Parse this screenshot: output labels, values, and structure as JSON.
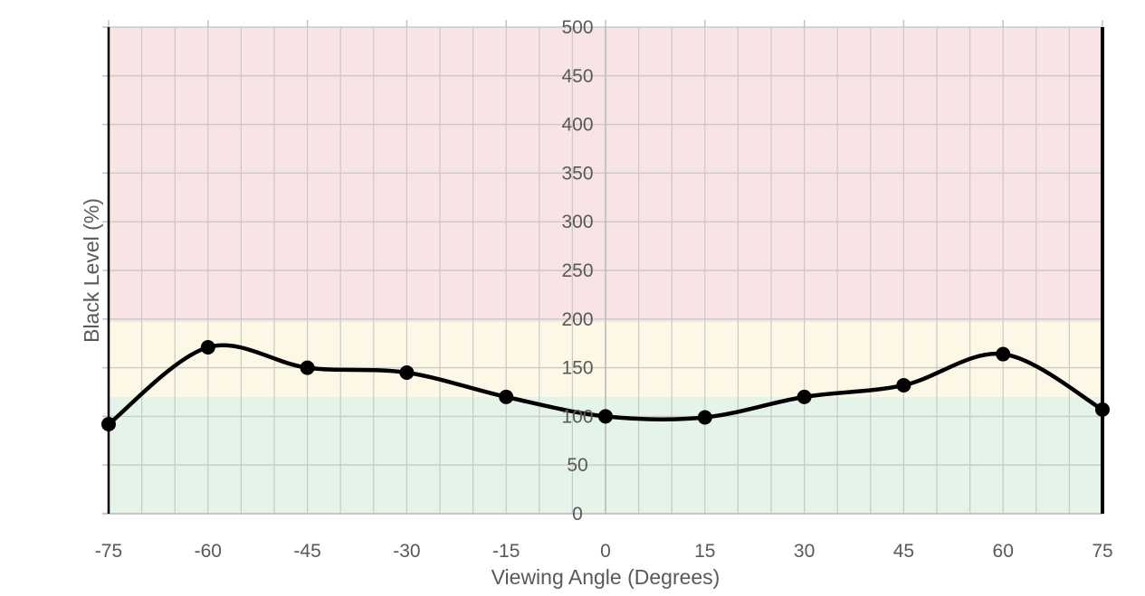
{
  "chart_data": {
    "type": "line",
    "title": "",
    "xlabel": "Viewing Angle (Degrees)",
    "ylabel": "Black Level (%)",
    "xlim": [
      -75,
      75
    ],
    "ylim": [
      0,
      500
    ],
    "x_ticks": [
      -75,
      -60,
      -45,
      -30,
      -15,
      0,
      15,
      30,
      45,
      60,
      75
    ],
    "y_ticks": [
      0,
      50,
      100,
      150,
      200,
      250,
      300,
      350,
      400,
      450,
      500
    ],
    "x_minor_step": 5,
    "y_minor_step": 50,
    "grid": true,
    "smooth": true,
    "bands": [
      {
        "from": 0,
        "to": 120,
        "color": "#e4f4e9"
      },
      {
        "from": 120,
        "to": 197,
        "color": "#fdf7e5"
      },
      {
        "from": 197,
        "to": 500,
        "color": "#f8e4e5"
      }
    ],
    "series": [
      {
        "color": "#000000",
        "x": [
          -75,
          -60,
          -45,
          -30,
          -15,
          0,
          15,
          30,
          45,
          60,
          75
        ],
        "y": [
          92,
          171,
          150,
          145,
          120,
          100,
          99,
          120,
          132,
          164,
          107
        ]
      }
    ]
  }
}
